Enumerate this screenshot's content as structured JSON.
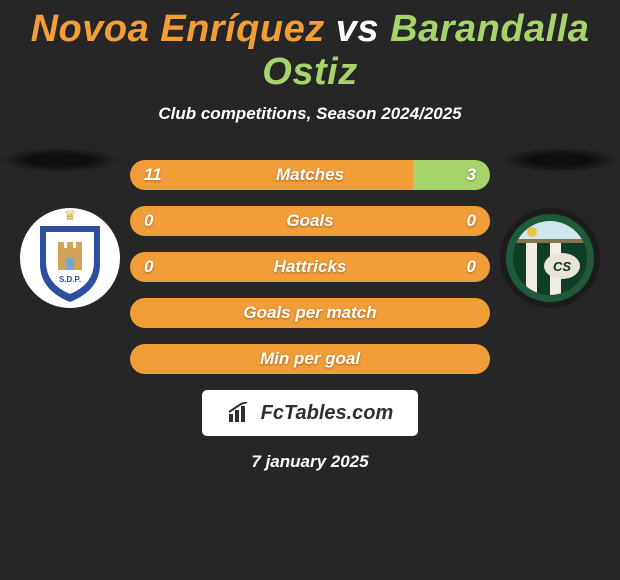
{
  "title": {
    "player1": "Novoa Enríquez",
    "vs": "vs",
    "player2": "Barandalla Ostiz"
  },
  "subtitle": "Club competitions, Season 2024/2025",
  "colors": {
    "player1": "#f19d38",
    "player2": "#a7d36b",
    "background": "#262626",
    "text": "#ffffff"
  },
  "stats": [
    {
      "label": "Matches",
      "p1": "11",
      "p2": "3",
      "p1_share": 78.6,
      "p2_share": 21.4
    },
    {
      "label": "Goals",
      "p1": "0",
      "p2": "0",
      "p1_share": 50,
      "p2_share": 50,
      "full_orange": true
    },
    {
      "label": "Hattricks",
      "p1": "0",
      "p2": "0",
      "p1_share": 50,
      "p2_share": 50,
      "full_orange": true
    },
    {
      "label": "Goals per match",
      "p1": "",
      "p2": "",
      "p1_share": 50,
      "p2_share": 50,
      "full_orange": true
    },
    {
      "label": "Min per goal",
      "p1": "",
      "p2": "",
      "p1_share": 50,
      "p2_share": 50,
      "full_orange": true
    }
  ],
  "brand": "FcTables.com",
  "date": "7 january 2025",
  "club_left": {
    "bg": "#ffffff",
    "shield_outer": "#2e4fa0",
    "shield_inner": "#ffffff",
    "castle": "#d4a35a",
    "crown": "#d9a441"
  },
  "club_right": {
    "bg": "#1c1c1c",
    "ring": "#1f5a3a",
    "stripes": [
      "#0f3d26",
      "#f0ede4",
      "#0f3d26",
      "#f0ede4",
      "#0f3d26"
    ],
    "sky": "#cfe6ef",
    "sun": "#e8c04a"
  }
}
